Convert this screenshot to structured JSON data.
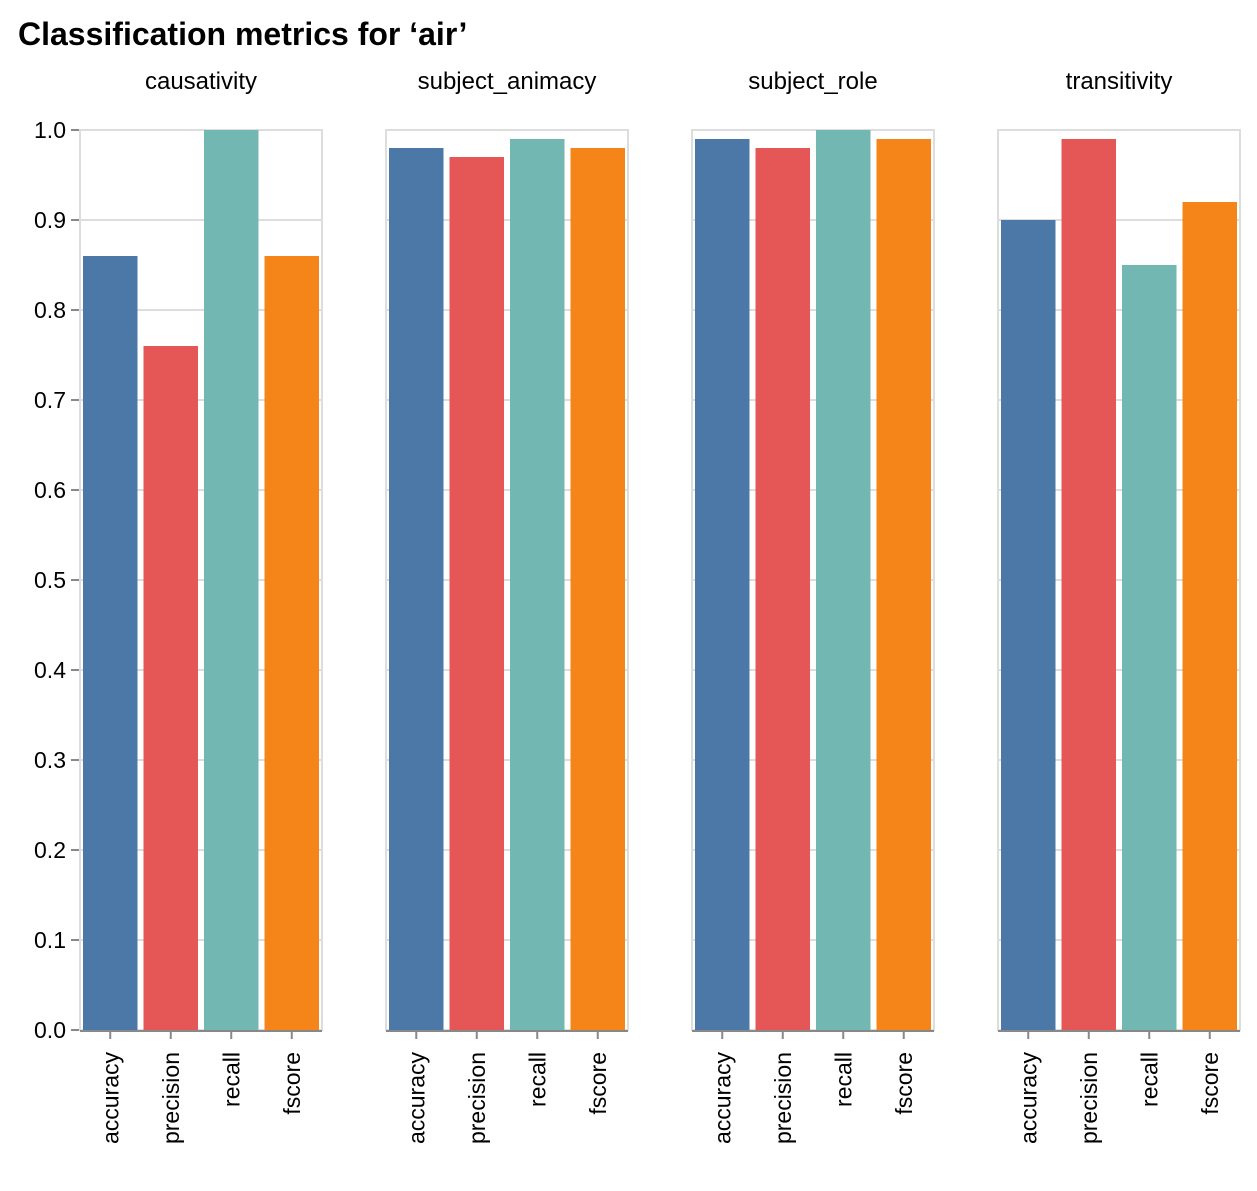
{
  "chart_data": {
    "type": "bar",
    "title": "Classification metrics for ‘air’",
    "categories": [
      "accuracy",
      "precision",
      "recall",
      "fscore"
    ],
    "colors": {
      "accuracy": "#4c78a8",
      "precision": "#e45756",
      "recall": "#72b7b2",
      "fscore": "#f58518"
    },
    "ylim": [
      0,
      1.0
    ],
    "yticks": [
      "0.0",
      "0.1",
      "0.2",
      "0.3",
      "0.4",
      "0.5",
      "0.6",
      "0.7",
      "0.8",
      "0.9",
      "1.0"
    ],
    "grid": true,
    "facets": [
      {
        "name": "causativity",
        "values": [
          0.86,
          0.76,
          1.0,
          0.86
        ]
      },
      {
        "name": "subject_animacy",
        "values": [
          0.98,
          0.97,
          0.99,
          0.98
        ]
      },
      {
        "name": "subject_role",
        "values": [
          0.99,
          0.98,
          1.0,
          0.99
        ]
      },
      {
        "name": "transitivity",
        "values": [
          0.9,
          0.99,
          0.85,
          0.92
        ]
      }
    ]
  }
}
